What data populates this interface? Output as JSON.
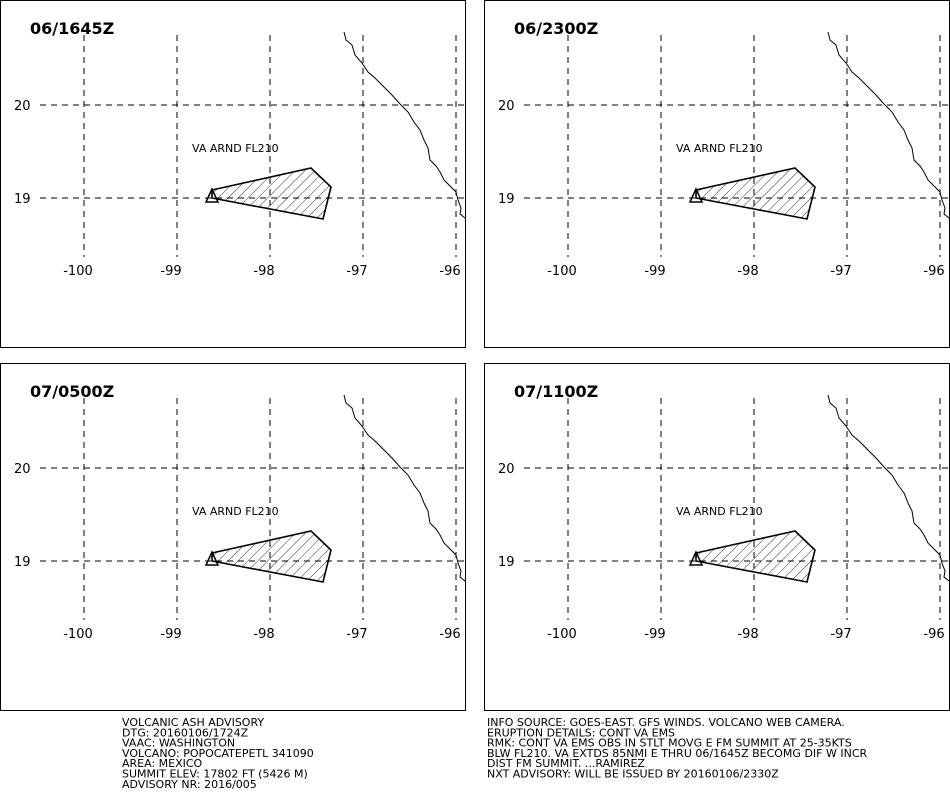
{
  "panels": [
    {
      "time": "06/1645Z",
      "annotation": "VA ARND FL210"
    },
    {
      "time": "06/2300Z",
      "annotation": "VA ARND FL210"
    },
    {
      "time": "07/0500Z",
      "annotation": "VA ARND FL210"
    },
    {
      "time": "07/1100Z",
      "annotation": "VA ARND FL210"
    }
  ],
  "lat_labels": [
    20,
    19
  ],
  "lon_labels": [
    -100,
    -99,
    -98,
    -97,
    -96
  ],
  "footer_left": [
    "VOLCANIC ASH ADVISORY",
    "DTG: 20160106/1724Z",
    "VAAC: WASHINGTON",
    "VOLCANO: POPOCATEPETL 341090",
    "AREA: MEXICO",
    "SUMMIT ELEV: 17802 FT (5426 M)",
    "ADVISORY NR: 2016/005"
  ],
  "footer_right": [
    "INFO SOURCE: GOES-EAST. GFS WINDS. VOLCANO WEB CAMERA.",
    "ERUPTION DETAILS: CONT VA EMS",
    "RMK: CONT VA EMS OBS IN STLT MOVG E FM SUMMIT AT 25-35KTS",
    "BLW FL210. VA EXTDS 85NMI E THRU 06/1645Z BECOMG DIF W INCR",
    "DIST FM SUMMIT. ...RAMIREZ",
    "NXT ADVISORY: WILL BE ISSUED BY 20160106/2330Z"
  ]
}
